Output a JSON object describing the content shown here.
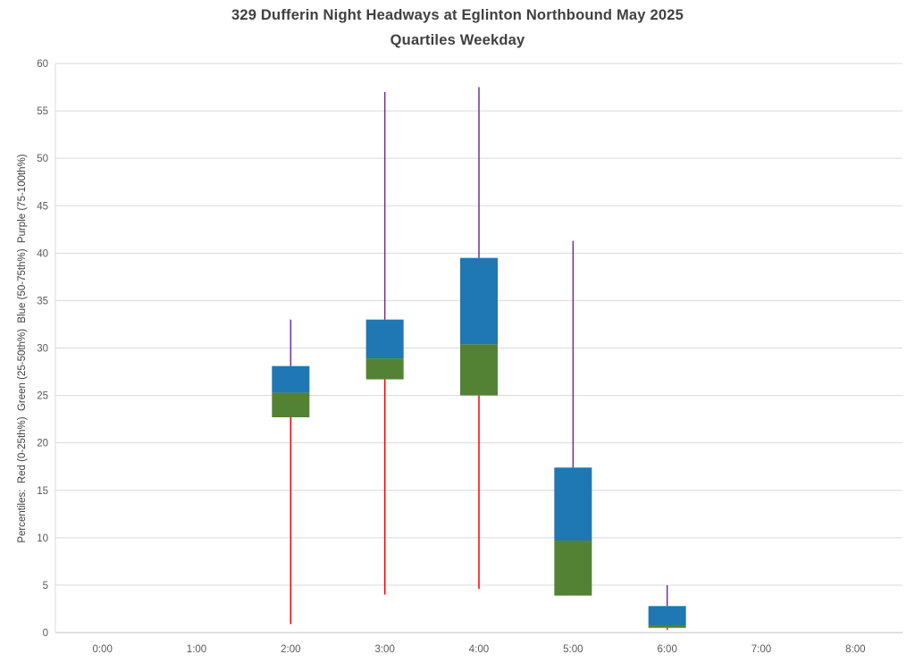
{
  "title": {
    "line1": "329 Dufferin Night Headways at Eglinton Northbound May 2025",
    "line2": "Quartiles Weekday"
  },
  "chart_data": {
    "type": "box-quartiles",
    "title": "329 Dufferin Night Headways at Eglinton Northbound May 2025",
    "subtitle": "Quartiles Weekday",
    "ylabel": "Percentiles:  Red (0-25th%)  Green (25-50th%)  Blue (50-75th%)  Purple (75-100th%)",
    "xlabel": "",
    "ylim": [
      0,
      60
    ],
    "ytick_step": 5,
    "grid": true,
    "legend": "none",
    "categories": [
      "0:00",
      "1:00",
      "2:00",
      "3:00",
      "4:00",
      "5:00",
      "6:00",
      "7:00",
      "8:00"
    ],
    "colors": {
      "p0_25": "#ff0000",
      "p25_50": "#548235",
      "p50_75": "#1f77b4",
      "p75_100": "#7030a0",
      "gridline": "#d9d9d9",
      "axis_line": "#bfbfbf",
      "tick_text": "#595959"
    },
    "series": [
      {
        "category": "2:00",
        "p0": 0.9,
        "p25": 22.7,
        "p50": 25.3,
        "p75": 28.1,
        "p100": 33.0
      },
      {
        "category": "3:00",
        "p0": 4.0,
        "p25": 26.7,
        "p50": 28.9,
        "p75": 33.0,
        "p100": 57.0
      },
      {
        "category": "4:00",
        "p0": 4.6,
        "p25": 25.0,
        "p50": 30.4,
        "p75": 39.5,
        "p100": 57.5
      },
      {
        "category": "5:00",
        "p0": 3.9,
        "p25": 3.9,
        "p50": 9.7,
        "p75": 17.4,
        "p100": 41.3
      },
      {
        "category": "6:00",
        "p0": 0.3,
        "p25": 0.5,
        "p50": 0.8,
        "p75": 2.8,
        "p100": 5.0
      }
    ]
  }
}
